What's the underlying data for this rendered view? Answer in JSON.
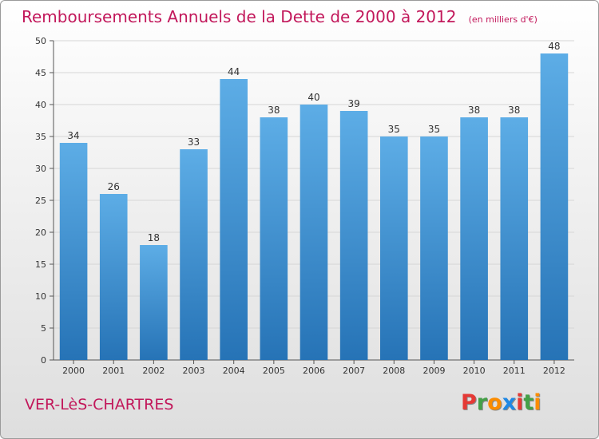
{
  "header": {
    "title": "Remboursements Annuels de la Dette de 2000 à 2012",
    "subtitle": "(en milliers d'€)"
  },
  "footer": {
    "place": "VER-LèS-CHARTRES",
    "logo": "Proxiti"
  },
  "colors": {
    "bar_top": "#5dade6",
    "bar_bottom": "#2673b6",
    "accent": "#c2185b",
    "logo_letters": [
      "#e53935",
      "#43a047",
      "#fb8c00",
      "#1e88e5",
      "#e53935",
      "#43a047",
      "#fb8c00"
    ]
  },
  "chart_data": {
    "type": "bar",
    "title": "Remboursements Annuels de la Dette de 2000 à 2012",
    "subtitle": "(en milliers d'€)",
    "categories": [
      "2000",
      "2001",
      "2002",
      "2003",
      "2004",
      "2005",
      "2006",
      "2007",
      "2008",
      "2009",
      "2010",
      "2011",
      "2012"
    ],
    "values": [
      34,
      26,
      18,
      33,
      44,
      38,
      40,
      39,
      35,
      35,
      38,
      38,
      48
    ],
    "ylim": [
      0,
      50
    ],
    "yticks": [
      0,
      5,
      10,
      15,
      20,
      25,
      30,
      35,
      40,
      45,
      50
    ],
    "grid": true,
    "xlabel": "",
    "ylabel": ""
  }
}
